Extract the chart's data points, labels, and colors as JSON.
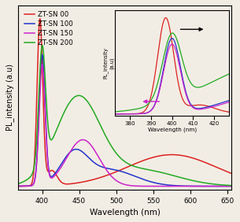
{
  "xlabel": "Wavelength (nm)",
  "ylabel": "PL_intensity (a.u)",
  "xlim": [
    368,
    655
  ],
  "legend": [
    "ZT-SN 00",
    "ZT-SN 100",
    "ZT-SN 150",
    "ZT-SN 200"
  ],
  "colors": [
    "#dd2222",
    "#2233cc",
    "#cc22cc",
    "#22aa22"
  ],
  "background_color": "#f2ede4",
  "inset_xlabel": "Wavelength (nm)",
  "inset_ylabel": "PL_intensity\n(a.u)",
  "inset_xticks": [
    380,
    390,
    400,
    410,
    420
  ]
}
